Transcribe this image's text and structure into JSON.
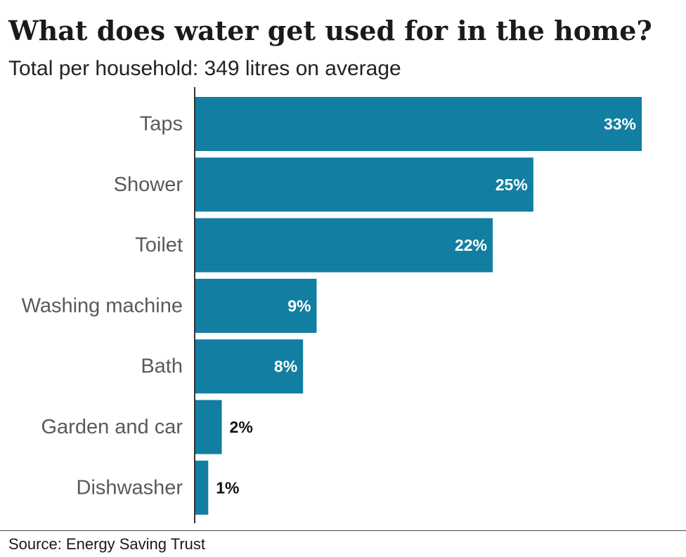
{
  "title": "What does water get used for in the home?",
  "subtitle": "Total per household: 349 litres on average",
  "source": "Source: Energy Saving Trust",
  "colors": {
    "bar": "#127ea1",
    "axis": "#333333",
    "label_inside": "#ffffff",
    "label_outside": "#111111"
  },
  "chart_data": {
    "type": "bar",
    "orientation": "horizontal",
    "categories": [
      "Taps",
      "Shower",
      "Toilet",
      "Washing machine",
      "Bath",
      "Garden and car",
      "Dishwasher"
    ],
    "values": [
      33,
      25,
      22,
      9,
      8,
      2,
      1
    ],
    "value_labels": [
      "33%",
      "25%",
      "22%",
      "9%",
      "8%",
      "2%",
      "1%"
    ],
    "unit": "%",
    "xlim": [
      0,
      33
    ],
    "grid": false,
    "legend": "none"
  }
}
